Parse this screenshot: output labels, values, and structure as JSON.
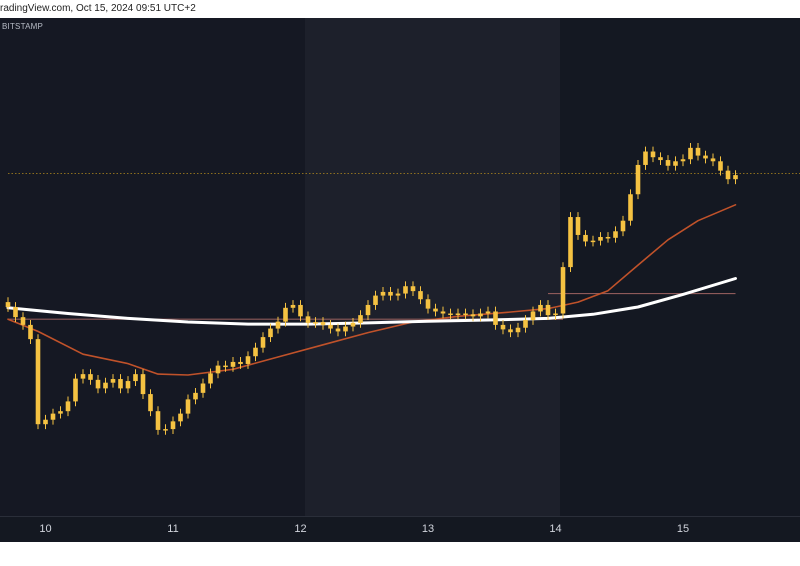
{
  "header": {
    "watermark_text": "radingView.com, Oct 15, 2024 09:51 UTC+2"
  },
  "exchange_label": "BITSTAMP",
  "colors": {
    "background": "#141821",
    "session_band": "#1d202b",
    "candle": "#f5c242",
    "ma_fast": "#c0522a",
    "ma_slow": "#ffffff",
    "level_line": "#8e5a5a",
    "price_line": "#b48a1e"
  },
  "chart_data": {
    "type": "candlestick",
    "title": "",
    "xlabel": "",
    "ylabel": "",
    "x_ticks": [
      "10",
      "11",
      "12",
      "13",
      "14",
      "15"
    ],
    "y_axis": "relative price (no scale printed)",
    "ylim": [
      0,
      100
    ],
    "candles": [
      [
        0,
        51.6
      ],
      [
        1,
        49.1
      ],
      [
        2,
        47.2
      ],
      [
        3,
        43.7
      ],
      [
        4,
        22.8
      ],
      [
        5,
        23.9
      ],
      [
        6,
        25.4
      ],
      [
        7,
        26.0
      ],
      [
        8,
        28.4
      ],
      [
        9,
        34.0
      ],
      [
        10,
        35.1
      ],
      [
        11,
        33.7
      ],
      [
        12,
        31.6
      ],
      [
        13,
        33.0
      ],
      [
        14,
        33.9
      ],
      [
        15,
        31.6
      ],
      [
        16,
        33.4
      ],
      [
        17,
        35.1
      ],
      [
        18,
        30.2
      ],
      [
        19,
        26.0
      ],
      [
        20,
        21.4
      ],
      [
        21,
        21.6
      ],
      [
        22,
        23.5
      ],
      [
        23,
        25.4
      ],
      [
        24,
        28.9
      ],
      [
        25,
        30.5
      ],
      [
        26,
        32.8
      ],
      [
        27,
        35.3
      ],
      [
        28,
        37.2
      ],
      [
        29,
        36.9
      ],
      [
        30,
        38.1
      ],
      [
        31,
        37.6
      ],
      [
        32,
        39.5
      ],
      [
        33,
        41.6
      ],
      [
        34,
        44.2
      ],
      [
        35,
        46.3
      ],
      [
        36,
        48.0
      ],
      [
        37,
        51.4
      ],
      [
        38,
        52.1
      ],
      [
        39,
        49.3
      ],
      [
        40,
        47.7
      ],
      [
        41,
        47.9
      ],
      [
        42,
        47.2
      ],
      [
        43,
        46.3
      ],
      [
        44,
        45.6
      ],
      [
        45,
        46.8
      ],
      [
        46,
        47.7
      ],
      [
        47,
        49.6
      ],
      [
        48,
        52.1
      ],
      [
        49,
        54.4
      ],
      [
        50,
        55.3
      ],
      [
        51,
        54.4
      ],
      [
        52,
        54.9
      ],
      [
        53,
        56.7
      ],
      [
        54,
        55.5
      ],
      [
        55,
        53.5
      ],
      [
        56,
        51.2
      ],
      [
        57,
        50.5
      ],
      [
        58,
        50.0
      ],
      [
        59,
        49.8
      ],
      [
        60,
        50.0
      ],
      [
        61,
        49.8
      ],
      [
        62,
        49.3
      ],
      [
        63,
        50.0
      ],
      [
        64,
        50.5
      ],
      [
        65,
        47.2
      ],
      [
        66,
        46.1
      ],
      [
        67,
        45.4
      ],
      [
        68,
        46.5
      ],
      [
        69,
        48.4
      ],
      [
        70,
        50.5
      ],
      [
        71,
        52.1
      ],
      [
        72,
        49.6
      ],
      [
        73,
        50.0
      ],
      [
        74,
        61.4
      ],
      [
        75,
        73.7
      ],
      [
        76,
        69.3
      ],
      [
        77,
        67.7
      ],
      [
        78,
        67.9
      ],
      [
        79,
        68.8
      ],
      [
        80,
        68.6
      ],
      [
        81,
        70.2
      ],
      [
        82,
        72.8
      ],
      [
        83,
        79.3
      ],
      [
        84,
        86.5
      ],
      [
        85,
        89.8
      ],
      [
        86,
        88.4
      ],
      [
        87,
        87.7
      ],
      [
        88,
        86.3
      ],
      [
        89,
        87.4
      ],
      [
        90,
        87.9
      ],
      [
        91,
        90.7
      ],
      [
        92,
        88.8
      ],
      [
        93,
        88.1
      ],
      [
        94,
        87.4
      ],
      [
        95,
        85.1
      ],
      [
        96,
        83.0
      ],
      [
        97,
        84.0
      ]
    ],
    "ma_fast": [
      [
        0,
        48.6
      ],
      [
        4,
        45.6
      ],
      [
        10,
        40.0
      ],
      [
        16,
        37.7
      ],
      [
        20,
        35.1
      ],
      [
        24,
        34.9
      ],
      [
        30,
        36.3
      ],
      [
        36,
        39.3
      ],
      [
        42,
        42.3
      ],
      [
        48,
        45.3
      ],
      [
        54,
        47.9
      ],
      [
        60,
        49.3
      ],
      [
        66,
        50.2
      ],
      [
        72,
        51.2
      ],
      [
        76,
        52.8
      ],
      [
        80,
        55.6
      ],
      [
        84,
        61.9
      ],
      [
        88,
        68.1
      ],
      [
        92,
        72.8
      ],
      [
        97,
        76.7
      ]
    ],
    "ma_slow": [
      [
        0,
        51.4
      ],
      [
        8,
        50.0
      ],
      [
        16,
        48.8
      ],
      [
        24,
        47.9
      ],
      [
        32,
        47.4
      ],
      [
        40,
        47.4
      ],
      [
        48,
        47.7
      ],
      [
        56,
        48.1
      ],
      [
        64,
        48.4
      ],
      [
        72,
        48.8
      ],
      [
        78,
        49.8
      ],
      [
        84,
        51.6
      ],
      [
        90,
        54.7
      ],
      [
        97,
        58.6
      ]
    ],
    "horizontal_levels": [
      {
        "y": 48.6,
        "from_index": 0,
        "to_index": 74,
        "style": "solid"
      },
      {
        "y": 54.9,
        "from_index": 72,
        "to_index": 97,
        "style": "solid"
      },
      {
        "y": 84.4,
        "from_index": 0,
        "to_index": 106,
        "style": "dotted"
      }
    ],
    "x_tick_index": [
      5,
      22,
      39,
      56,
      73,
      90
    ],
    "x_domain": [
      0,
      106
    ],
    "grid": false,
    "legend": "none"
  }
}
